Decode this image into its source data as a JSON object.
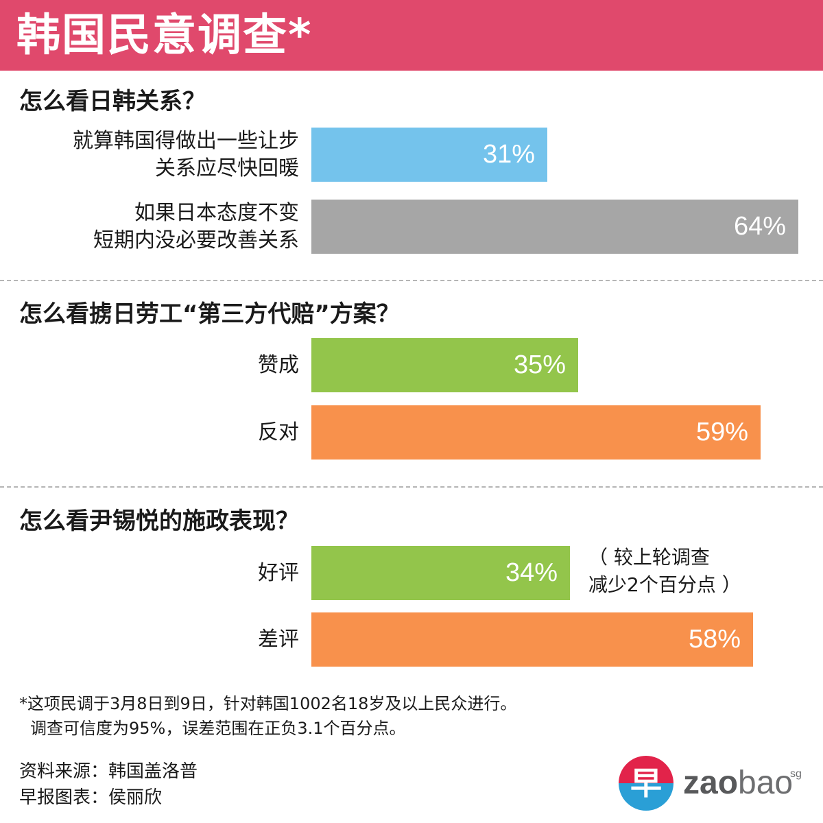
{
  "header": {
    "title": "韩国民意调查*"
  },
  "chart_data": {
    "type": "bar",
    "xlim": [
      0,
      100
    ],
    "sections": [
      {
        "title": "怎么看日韩关系？",
        "bars": [
          {
            "label": [
              "就算韩国得做出一些让步",
              "关系应尽快回暖"
            ],
            "value": 31,
            "display": "31%",
            "color": "#74c3ec"
          },
          {
            "label": [
              "如果日本态度不变",
              "短期内没必要改善关系"
            ],
            "value": 64,
            "display": "64%",
            "color": "#a6a6a6"
          }
        ]
      },
      {
        "title": "怎么看掳日劳工“第三方代赔”方案？",
        "bars": [
          {
            "label": [
              "赞成"
            ],
            "value": 35,
            "display": "35%",
            "color": "#93c54b"
          },
          {
            "label": [
              "反对"
            ],
            "value": 59,
            "display": "59%",
            "color": "#f8914c"
          }
        ]
      },
      {
        "title": "怎么看尹锡悦的施政表现？",
        "bars": [
          {
            "label": [
              "好评"
            ],
            "value": 34,
            "display": "34%",
            "color": "#93c54b"
          },
          {
            "label": [
              "差评"
            ],
            "value": 58,
            "display": "58%",
            "color": "#f8914c"
          }
        ]
      }
    ],
    "annotation": [
      "（ 较上轮调查",
      "减少2个百分点 ）"
    ]
  },
  "footnote": {
    "line1": "*这项民调于3月8日到9日，针对韩国1002名18岁及以上民众进行。",
    "line2": "调查可信度为95%，误差范围在正负3.1个百分点。"
  },
  "credits": {
    "source": "资料来源：韩国盖洛普",
    "graphic": "早报图表：侯丽欣"
  },
  "logo": {
    "glyph": "早",
    "bold": "zao",
    "light": "bao",
    "suffix": "sg"
  }
}
